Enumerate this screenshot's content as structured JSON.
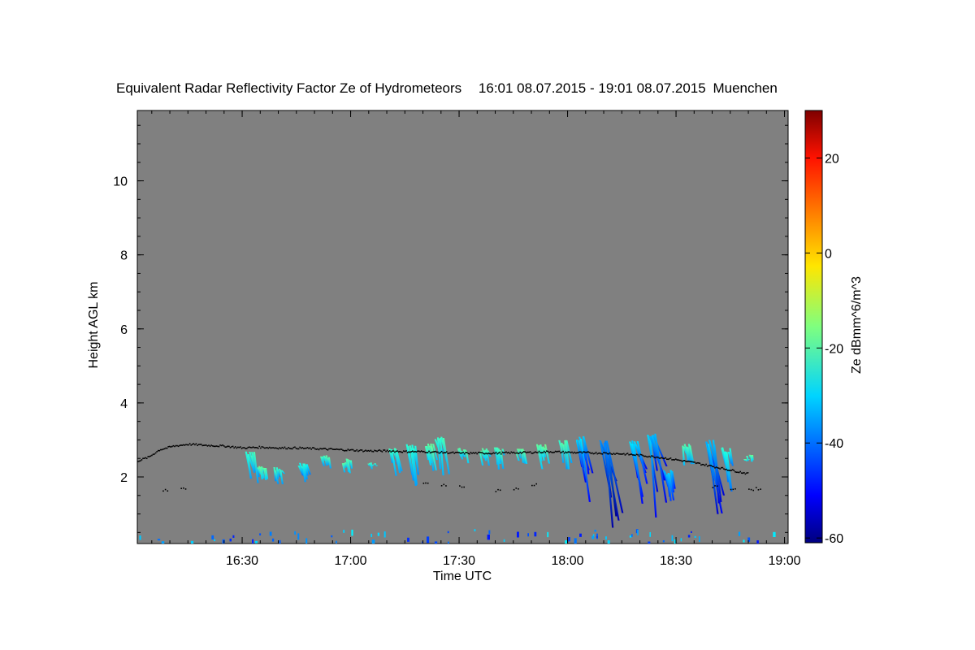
{
  "chart_data": {
    "type": "heatmap",
    "title": "Equivalent Radar Reflectivity Factor Ze of Hydrometeors",
    "time_range": "16:01 08.07.2015 - 19:01 08.07.2015",
    "location": "Muenchen",
    "xlabel": "Time UTC",
    "ylabel": "Height AGL km",
    "x_unit": "minutes since 16:00 UTC",
    "xlim": [
      1,
      181
    ],
    "ylim": [
      0.2,
      11.9
    ],
    "x_ticks": [
      {
        "value": 30,
        "label": "16:30"
      },
      {
        "value": 60,
        "label": "17:00"
      },
      {
        "value": 90,
        "label": "17:30"
      },
      {
        "value": 120,
        "label": "18:00"
      },
      {
        "value": 150,
        "label": "18:30"
      },
      {
        "value": 180,
        "label": "19:00"
      }
    ],
    "y_ticks": [
      2,
      4,
      6,
      8,
      10
    ],
    "background_color": "#808080",
    "colorbar": {
      "label": "Ze dBmm^6/m^3",
      "min": -61,
      "max": 30,
      "ticks": [
        -60,
        -40,
        -20,
        0,
        20
      ],
      "colormap": "jet"
    },
    "echo_columns": [
      {
        "x": 32.5,
        "top": 2.7,
        "bottom": 1.6,
        "ze": -30
      },
      {
        "x": 35.5,
        "top": 2.3,
        "bottom": 1.9,
        "ze": -26
      },
      {
        "x": 40,
        "top": 2.3,
        "bottom": 1.8,
        "ze": -30
      },
      {
        "x": 47,
        "top": 2.4,
        "bottom": 1.6,
        "ze": -32
      },
      {
        "x": 53,
        "top": 2.6,
        "bottom": 2.2,
        "ze": -28
      },
      {
        "x": 59,
        "top": 2.5,
        "bottom": 2.1,
        "ze": -27
      },
      {
        "x": 66,
        "top": 2.4,
        "bottom": 2.2,
        "ze": -28
      },
      {
        "x": 72,
        "top": 2.8,
        "bottom": 2.0,
        "ze": -30
      },
      {
        "x": 77,
        "top": 2.9,
        "bottom": 1.7,
        "ze": -31
      },
      {
        "x": 82,
        "top": 2.9,
        "bottom": 2.1,
        "ze": -27
      },
      {
        "x": 85,
        "top": 3.1,
        "bottom": 2.0,
        "ze": -29
      },
      {
        "x": 91,
        "top": 2.8,
        "bottom": 2.3,
        "ze": -27
      },
      {
        "x": 97,
        "top": 2.8,
        "bottom": 2.3,
        "ze": -27
      },
      {
        "x": 101,
        "top": 2.8,
        "bottom": 2.2,
        "ze": -28
      },
      {
        "x": 107,
        "top": 2.8,
        "bottom": 2.3,
        "ze": -27
      },
      {
        "x": 113,
        "top": 2.9,
        "bottom": 2.1,
        "ze": -26
      },
      {
        "x": 119,
        "top": 3.0,
        "bottom": 2.2,
        "ze": -28
      },
      {
        "x": 124,
        "top": 3.1,
        "bottom": 1.2,
        "ze": -38
      },
      {
        "x": 131,
        "top": 3.0,
        "bottom": 0.5,
        "ze": -46
      },
      {
        "x": 139,
        "top": 3.0,
        "bottom": 1.1,
        "ze": -38
      },
      {
        "x": 144,
        "top": 3.2,
        "bottom": 0.8,
        "ze": -40
      },
      {
        "x": 148,
        "top": 2.2,
        "bottom": 1.3,
        "ze": -40
      },
      {
        "x": 153,
        "top": 2.9,
        "bottom": 2.3,
        "ze": -28
      },
      {
        "x": 160,
        "top": 3.0,
        "bottom": 0.8,
        "ze": -40
      },
      {
        "x": 164,
        "top": 2.8,
        "bottom": 1.6,
        "ze": -32
      },
      {
        "x": 170,
        "top": 2.6,
        "bottom": 2.4,
        "ze": -26
      }
    ],
    "cloud_base_series": {
      "points": [
        [
          1,
          2.45
        ],
        [
          4,
          2.55
        ],
        [
          7,
          2.75
        ],
        [
          11,
          2.85
        ],
        [
          15,
          2.9
        ],
        [
          20,
          2.87
        ],
        [
          25,
          2.85
        ],
        [
          30,
          2.8
        ],
        [
          35,
          2.82
        ],
        [
          40,
          2.8
        ],
        [
          45,
          2.8
        ],
        [
          50,
          2.78
        ],
        [
          55,
          2.76
        ],
        [
          60,
          2.74
        ],
        [
          65,
          2.72
        ],
        [
          70,
          2.72
        ],
        [
          75,
          2.7
        ],
        [
          80,
          2.7
        ],
        [
          85,
          2.68
        ],
        [
          90,
          2.66
        ],
        [
          95,
          2.66
        ],
        [
          100,
          2.66
        ],
        [
          105,
          2.67
        ],
        [
          110,
          2.68
        ],
        [
          115,
          2.7
        ],
        [
          120,
          2.68
        ],
        [
          125,
          2.67
        ],
        [
          130,
          2.66
        ],
        [
          135,
          2.64
        ],
        [
          140,
          2.6
        ],
        [
          145,
          2.55
        ],
        [
          150,
          2.48
        ],
        [
          155,
          2.4
        ],
        [
          160,
          2.3
        ],
        [
          165,
          2.2
        ],
        [
          170,
          2.1
        ]
      ],
      "secondary": [
        [
          8,
          1.65
        ],
        [
          13,
          1.72
        ],
        [
          80,
          1.85
        ],
        [
          85,
          1.8
        ],
        [
          90,
          1.75
        ],
        [
          100,
          1.65
        ],
        [
          105,
          1.7
        ],
        [
          110,
          1.8
        ],
        [
          160,
          1.75
        ],
        [
          165,
          1.7
        ],
        [
          170,
          1.68
        ],
        [
          172,
          1.7
        ]
      ]
    }
  }
}
